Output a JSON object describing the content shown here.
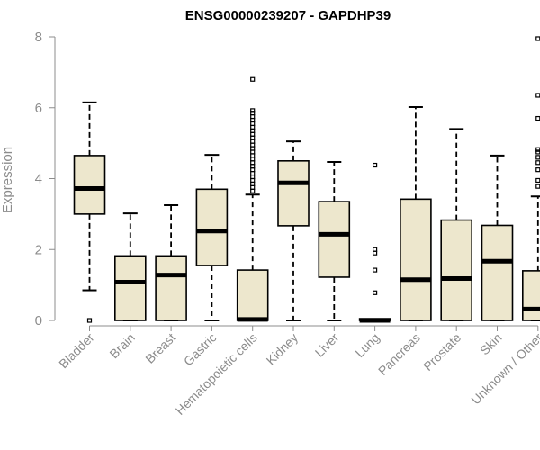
{
  "chart_data": {
    "type": "box",
    "title": "ENSG00000239207 - GAPDHP39",
    "xlabel": "",
    "ylabel": "Expression",
    "ylim": [
      0,
      8
    ],
    "yticks": [
      0,
      2,
      4,
      6,
      8
    ],
    "box_fill": "#ede7cd",
    "categories": [
      "Bladder",
      "Brain",
      "Breast",
      "Gastric",
      "Hematopoietic cells",
      "Kidney",
      "Liver",
      "Lung",
      "Pancreas",
      "Prostate",
      "Skin",
      "Unknown / Other"
    ],
    "boxes": [
      {
        "whisker_low": 0.85,
        "q1": 3.0,
        "median": 3.72,
        "q3": 4.65,
        "whisker_high": 6.15,
        "outliers": [
          0.0
        ]
      },
      {
        "whisker_low": 0.0,
        "q1": 0.0,
        "median": 1.08,
        "q3": 1.82,
        "whisker_high": 3.02,
        "outliers": []
      },
      {
        "whisker_low": 0.0,
        "q1": 0.0,
        "median": 1.28,
        "q3": 1.82,
        "whisker_high": 3.25,
        "outliers": []
      },
      {
        "whisker_low": 0.0,
        "q1": 1.55,
        "median": 2.52,
        "q3": 3.7,
        "whisker_high": 4.67,
        "outliers": []
      },
      {
        "whisker_low": 0.0,
        "q1": 0.0,
        "median": 0.03,
        "q3": 1.42,
        "whisker_high": 3.55,
        "outliers": [
          3.65,
          3.75,
          3.85,
          3.95,
          4.05,
          4.15,
          4.25,
          4.35,
          4.45,
          4.55,
          4.65,
          4.75,
          4.85,
          4.95,
          5.05,
          5.15,
          5.25,
          5.35,
          5.45,
          5.55,
          5.65,
          5.75,
          5.85,
          5.92,
          6.8
        ]
      },
      {
        "whisker_low": 0.0,
        "q1": 2.67,
        "median": 3.88,
        "q3": 4.5,
        "whisker_high": 5.05,
        "outliers": []
      },
      {
        "whisker_low": 0.0,
        "q1": 1.22,
        "median": 2.43,
        "q3": 3.35,
        "whisker_high": 4.47,
        "outliers": []
      },
      {
        "whisker_low": 0.0,
        "q1": 0.0,
        "median": 0.0,
        "q3": 0.05,
        "whisker_high": 0.05,
        "outliers": [
          0.78,
          1.42,
          1.9,
          2.0,
          4.38
        ]
      },
      {
        "whisker_low": 0.0,
        "q1": 0.0,
        "median": 1.15,
        "q3": 3.42,
        "whisker_high": 6.02,
        "outliers": []
      },
      {
        "whisker_low": 0.0,
        "q1": 0.0,
        "median": 1.18,
        "q3": 2.83,
        "whisker_high": 5.4,
        "outliers": []
      },
      {
        "whisker_low": 0.0,
        "q1": 0.0,
        "median": 1.67,
        "q3": 2.68,
        "whisker_high": 4.65,
        "outliers": []
      },
      {
        "whisker_low": 0.0,
        "q1": 0.0,
        "median": 0.32,
        "q3": 1.4,
        "whisker_high": 3.5,
        "outliers": [
          3.78,
          3.95,
          4.25,
          4.45,
          4.6,
          4.75,
          4.82,
          5.7,
          6.35,
          7.95
        ]
      }
    ]
  }
}
